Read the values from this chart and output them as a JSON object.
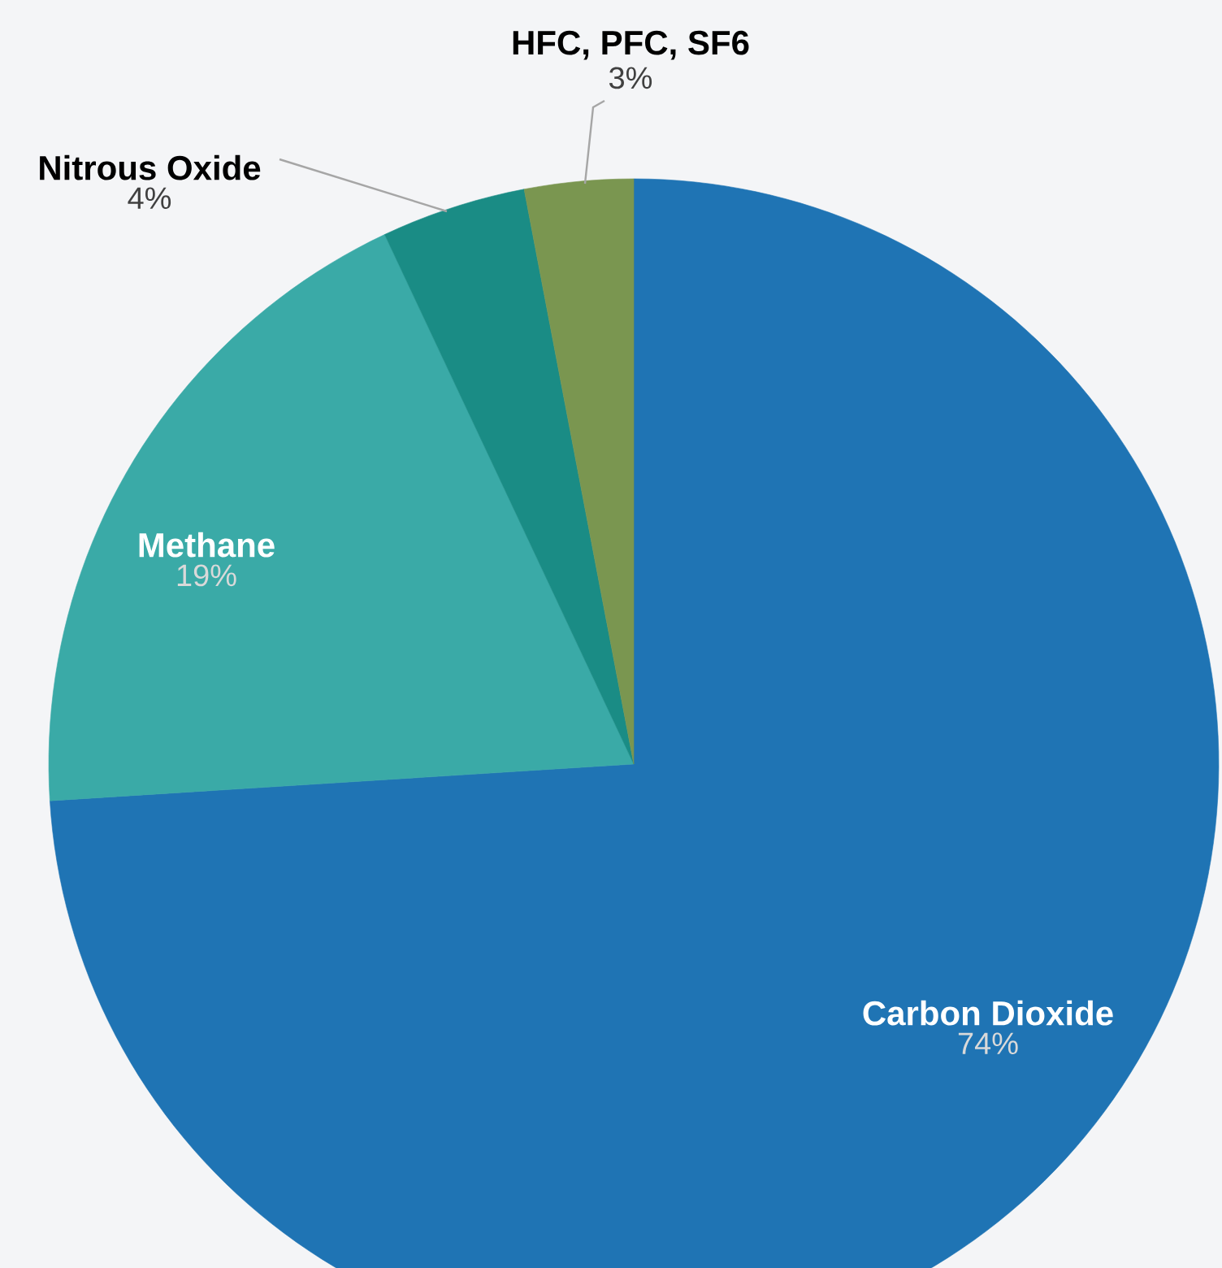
{
  "chart_data": {
    "type": "pie",
    "categories": [
      "Carbon Dioxide",
      "Methane",
      "Nitrous Oxide",
      "HFC, PFC, SF6"
    ],
    "values": [
      74,
      19,
      4,
      3
    ],
    "value_labels": [
      "74%",
      "19%",
      "4%",
      "3%"
    ],
    "colors": [
      "#1f74b4",
      "#3aaaa7",
      "#1a8c85",
      "#7a9650"
    ]
  }
}
